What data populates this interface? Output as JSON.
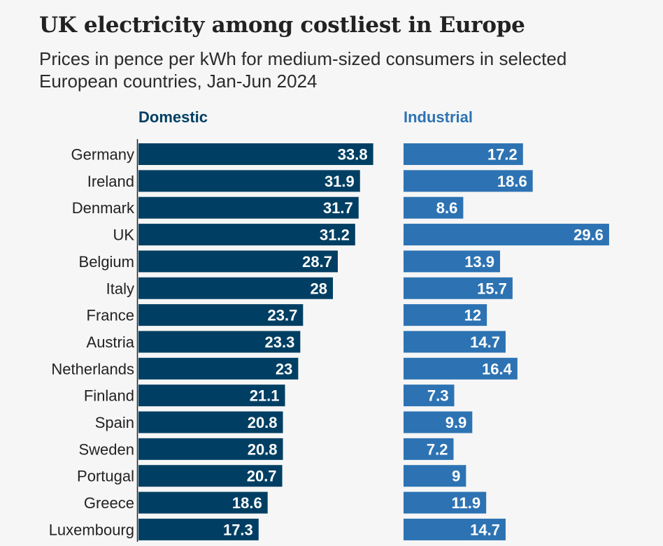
{
  "header": {
    "title": "UK electricity among costliest in Europe",
    "subtitle": "Prices in pence per kWh for medium-sized consumers in selected European countries, Jan-Jun 2024"
  },
  "colors": {
    "domestic": "#003f63",
    "industrial": "#2d73b3",
    "value_label": "#ffffff",
    "axis": "#222222",
    "background": "#f6f6f6"
  },
  "chart_data": {
    "type": "bar",
    "orientation": "horizontal",
    "title": "UK electricity among costliest in Europe",
    "subtitle": "Prices in pence per kWh for medium-sized consumers in selected European countries, Jan-Jun 2024",
    "categories": [
      "Germany",
      "Ireland",
      "Denmark",
      "UK",
      "Belgium",
      "Italy",
      "France",
      "Austria",
      "Netherlands",
      "Finland",
      "Spain",
      "Sweden",
      "Portugal",
      "Greece",
      "Luxembourg"
    ],
    "series": [
      {
        "name": "Domestic",
        "values": [
          33.8,
          31.9,
          31.7,
          31.2,
          28.7,
          28,
          23.7,
          23.3,
          23,
          21.1,
          20.8,
          20.8,
          20.7,
          18.6,
          17.3
        ]
      },
      {
        "name": "Industrial",
        "values": [
          17.2,
          18.6,
          8.6,
          29.6,
          13.9,
          15.7,
          12,
          14.7,
          16.4,
          7.3,
          9.9,
          7.2,
          9,
          11.9,
          14.7
        ]
      }
    ],
    "xlabel": "",
    "ylabel": "",
    "grid": false,
    "legend": "column headers above each panel",
    "data_labels": true
  }
}
